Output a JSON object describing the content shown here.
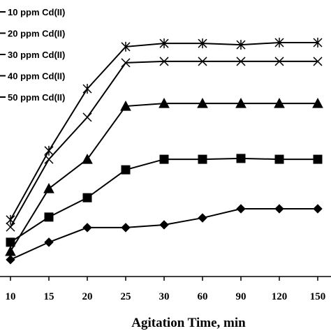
{
  "chart_data": {
    "type": "line",
    "x_label": "Agitation Time, min",
    "categories": [
      "10",
      "15",
      "20",
      "25",
      "30",
      "60",
      "90",
      "120",
      "150"
    ],
    "ylim": [
      0,
      100
    ],
    "series": [
      {
        "name": "10 ppm Cd(II)",
        "color": "#000000",
        "marker": "diamond",
        "values": [
          6.1,
          12.4,
          17.7,
          17.7,
          18.7,
          21.2,
          24.5,
          24.5,
          24.5
        ]
      },
      {
        "name": "20 ppm Cd(II)",
        "color": "#000000",
        "marker": "square",
        "values": [
          12.4,
          21.5,
          28.5,
          38.6,
          42.4,
          42.4,
          42.7,
          42.4,
          42.4
        ]
      },
      {
        "name": "30 ppm Cd(II)",
        "color": "#000000",
        "marker": "triangle",
        "values": [
          9.1,
          31.8,
          42.4,
          61.6,
          62.6,
          62.6,
          62.6,
          62.6,
          62.6
        ]
      },
      {
        "name": "40 ppm Cd(II)",
        "color": "#000000",
        "marker": "cross",
        "values": [
          17.9,
          42.4,
          57.6,
          77.3,
          77.8,
          77.8,
          77.8,
          77.8,
          77.8
        ]
      },
      {
        "name": "50 ppm Cd(II)",
        "color": "#000000",
        "marker": "star",
        "values": [
          20.5,
          45.5,
          67.9,
          83.1,
          84.3,
          84.3,
          83.8,
          84.6,
          84.6
        ]
      }
    ]
  }
}
